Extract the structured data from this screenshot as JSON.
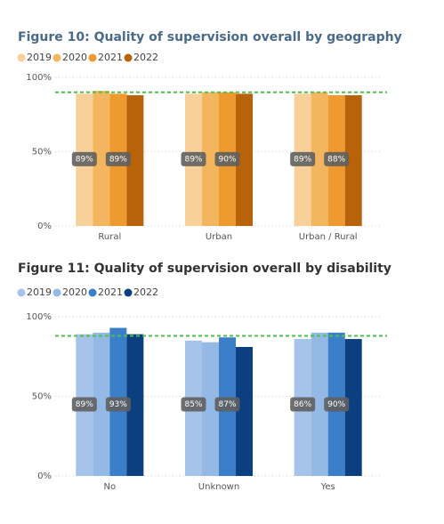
{
  "chart_data": [
    {
      "type": "bar",
      "title": "Figure 10: Quality of supervision overall by geography",
      "title_color": "#4a6a8a",
      "categories": [
        "Rural",
        "Urban",
        "Urban / Rural"
      ],
      "series": [
        {
          "name": "2019",
          "color": "#f8d09a",
          "values": [
            89,
            89,
            89
          ],
          "value_labels": [
            "89%",
            "89%",
            "89%"
          ]
        },
        {
          "name": "2020",
          "color": "#f3b65e",
          "values": [
            91,
            90,
            90
          ]
        },
        {
          "name": "2021",
          "color": "#ee9a2e",
          "values": [
            89,
            90,
            88
          ],
          "value_labels": [
            "89%",
            "90%",
            "88%"
          ]
        },
        {
          "name": "2022",
          "color": "#b8620a",
          "values": [
            88,
            89,
            88
          ]
        }
      ],
      "ylim": [
        0,
        100
      ],
      "yticks": [
        {
          "value": 0,
          "label": "0%"
        },
        {
          "value": 50,
          "label": "50%"
        },
        {
          "value": 100,
          "label": "100%"
        }
      ],
      "grid": true,
      "reference_line": 90,
      "reference_color": "#4cc24c"
    },
    {
      "type": "bar",
      "title": "Figure 11: Quality of supervision overall by disability",
      "title_color": "#333333",
      "categories": [
        "No",
        "Unknown",
        "Yes"
      ],
      "series": [
        {
          "name": "2019",
          "color": "#a6c4ea",
          "values": [
            89,
            85,
            86
          ],
          "value_labels": [
            "89%",
            "85%",
            "86%"
          ]
        },
        {
          "name": "2020",
          "color": "#95b9e5",
          "values": [
            90,
            84,
            90
          ]
        },
        {
          "name": "2021",
          "color": "#3a7fc8",
          "values": [
            93,
            87,
            90
          ],
          "value_labels": [
            "93%",
            "87%",
            "90%"
          ]
        },
        {
          "name": "2022",
          "color": "#0c3f80",
          "values": [
            89,
            81,
            86
          ]
        }
      ],
      "ylim": [
        0,
        100
      ],
      "yticks": [
        {
          "value": 0,
          "label": "0%"
        },
        {
          "value": 50,
          "label": "50%"
        },
        {
          "value": 100,
          "label": "100%"
        }
      ],
      "grid": true,
      "reference_line": 88,
      "reference_color": "#4cc24c"
    }
  ]
}
